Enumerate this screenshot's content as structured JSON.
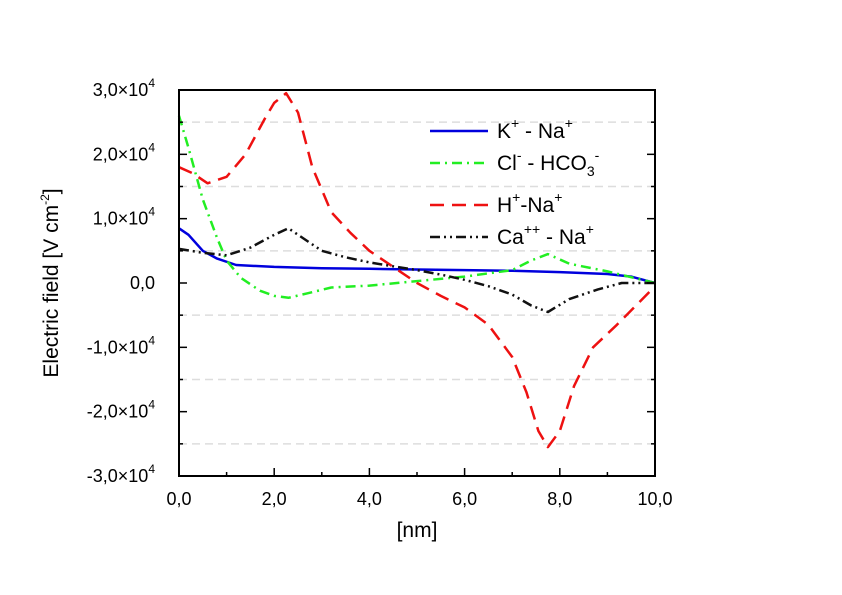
{
  "chart_data": {
    "type": "line",
    "xlabel": "[nm]",
    "ylabel": {
      "base": "Electric field [V cm",
      "sup": "-2",
      "end": "]"
    },
    "xlim": [
      0,
      10
    ],
    "ylim": [
      -30000,
      30000
    ],
    "x_ticks": [
      {
        "value": 0,
        "label": "0,0"
      },
      {
        "value": 2,
        "label": "2,0"
      },
      {
        "value": 4,
        "label": "4,0"
      },
      {
        "value": 6,
        "label": "6,0"
      },
      {
        "value": 8,
        "label": "8,0"
      },
      {
        "value": 10,
        "label": "10,0"
      }
    ],
    "y_ticks": [
      {
        "value": 30000,
        "mantissa": "3,0×10",
        "exp": "4"
      },
      {
        "value": 20000,
        "mantissa": "2,0×10",
        "exp": "4"
      },
      {
        "value": 10000,
        "mantissa": "1,0×10",
        "exp": "4"
      },
      {
        "value": 0,
        "mantissa": "0,0",
        "exp": ""
      },
      {
        "value": -10000,
        "mantissa": "-1,0×10",
        "exp": "4"
      },
      {
        "value": -20000,
        "mantissa": "-2,0×10",
        "exp": "4"
      },
      {
        "value": -30000,
        "mantissa": "-3,0×10",
        "exp": "4"
      }
    ],
    "reference_lines": [
      25000,
      15000,
      5000,
      -5000,
      -15000,
      -25000
    ],
    "series": [
      {
        "name": "K+ - Na+",
        "legend": [
          {
            "t": "K"
          },
          {
            "t": "+",
            "sup": true
          },
          {
            "t": " - Na"
          },
          {
            "t": "+",
            "sup": true
          }
        ],
        "color": "#0000dd",
        "style": "solid",
        "x": [
          0,
          0.2,
          0.5,
          0.8,
          1.2,
          2,
          3,
          4,
          5,
          6,
          7,
          8,
          9,
          9.5,
          10
        ],
        "y": [
          8500,
          7500,
          5000,
          3800,
          2800,
          2500,
          2300,
          2200,
          2100,
          2000,
          1900,
          1700,
          1400,
          1000,
          0
        ]
      },
      {
        "name": "Cl- - HCO3-",
        "legend": [
          {
            "t": "Cl"
          },
          {
            "t": "-",
            "sup": true
          },
          {
            "t": " - HCO"
          },
          {
            "t": "3",
            "sub": true
          },
          {
            "t": "-",
            "sup": true
          }
        ],
        "color": "#22ee22",
        "style": "dashdot",
        "x": [
          0,
          0.2,
          0.5,
          0.8,
          1,
          1.3,
          1.7,
          2.0,
          2.3,
          2.7,
          3.2,
          4,
          5,
          6,
          7,
          7.4,
          7.75,
          8.2,
          9,
          10
        ],
        "y": [
          26000,
          21000,
          13000,
          7000,
          3500,
          800,
          -1200,
          -2000,
          -2300,
          -1600,
          -700,
          -400,
          300,
          1000,
          2000,
          3500,
          4500,
          3000,
          1800,
          0
        ]
      },
      {
        "name": "H+-Na+",
        "legend": [
          {
            "t": "H"
          },
          {
            "t": "+",
            "sup": true
          },
          {
            "t": "-Na"
          },
          {
            "t": "+",
            "sup": true
          }
        ],
        "color": "#ee1111",
        "style": "dashed",
        "x": [
          0,
          0.3,
          0.6,
          1.0,
          1.4,
          1.8,
          2.0,
          2.25,
          2.5,
          2.8,
          3.2,
          3.6,
          4.0,
          4.5,
          5.0,
          5.5,
          6.0,
          6.5,
          7.0,
          7.3,
          7.55,
          7.75,
          8.0,
          8.3,
          8.7,
          9.2,
          9.6,
          10
        ],
        "y": [
          18000,
          17000,
          15500,
          16500,
          20000,
          25500,
          28000,
          29500,
          26500,
          18000,
          11000,
          7800,
          5000,
          2500,
          0,
          -2000,
          -3800,
          -6500,
          -11500,
          -17000,
          -23000,
          -25500,
          -23000,
          -16000,
          -10000,
          -6500,
          -3500,
          -500
        ]
      },
      {
        "name": "Ca++ - Na+",
        "legend": [
          {
            "t": "Ca"
          },
          {
            "t": "++",
            "sup": true
          },
          {
            "t": " - Na"
          },
          {
            "t": "+",
            "sup": true
          }
        ],
        "color": "#111111",
        "style": "dashdotdot",
        "x": [
          0,
          0.5,
          1.0,
          1.5,
          2.0,
          2.3,
          2.6,
          3.0,
          3.5,
          4.0,
          4.5,
          5.0,
          5.5,
          6.0,
          6.5,
          7.0,
          7.4,
          7.75,
          8.2,
          8.8,
          9.3,
          10
        ],
        "y": [
          5300,
          4700,
          4300,
          5500,
          7500,
          8500,
          7000,
          5000,
          4000,
          3200,
          2600,
          2000,
          1300,
          500,
          -500,
          -1800,
          -3500,
          -4500,
          -2500,
          -1000,
          0,
          0
        ]
      }
    ]
  }
}
